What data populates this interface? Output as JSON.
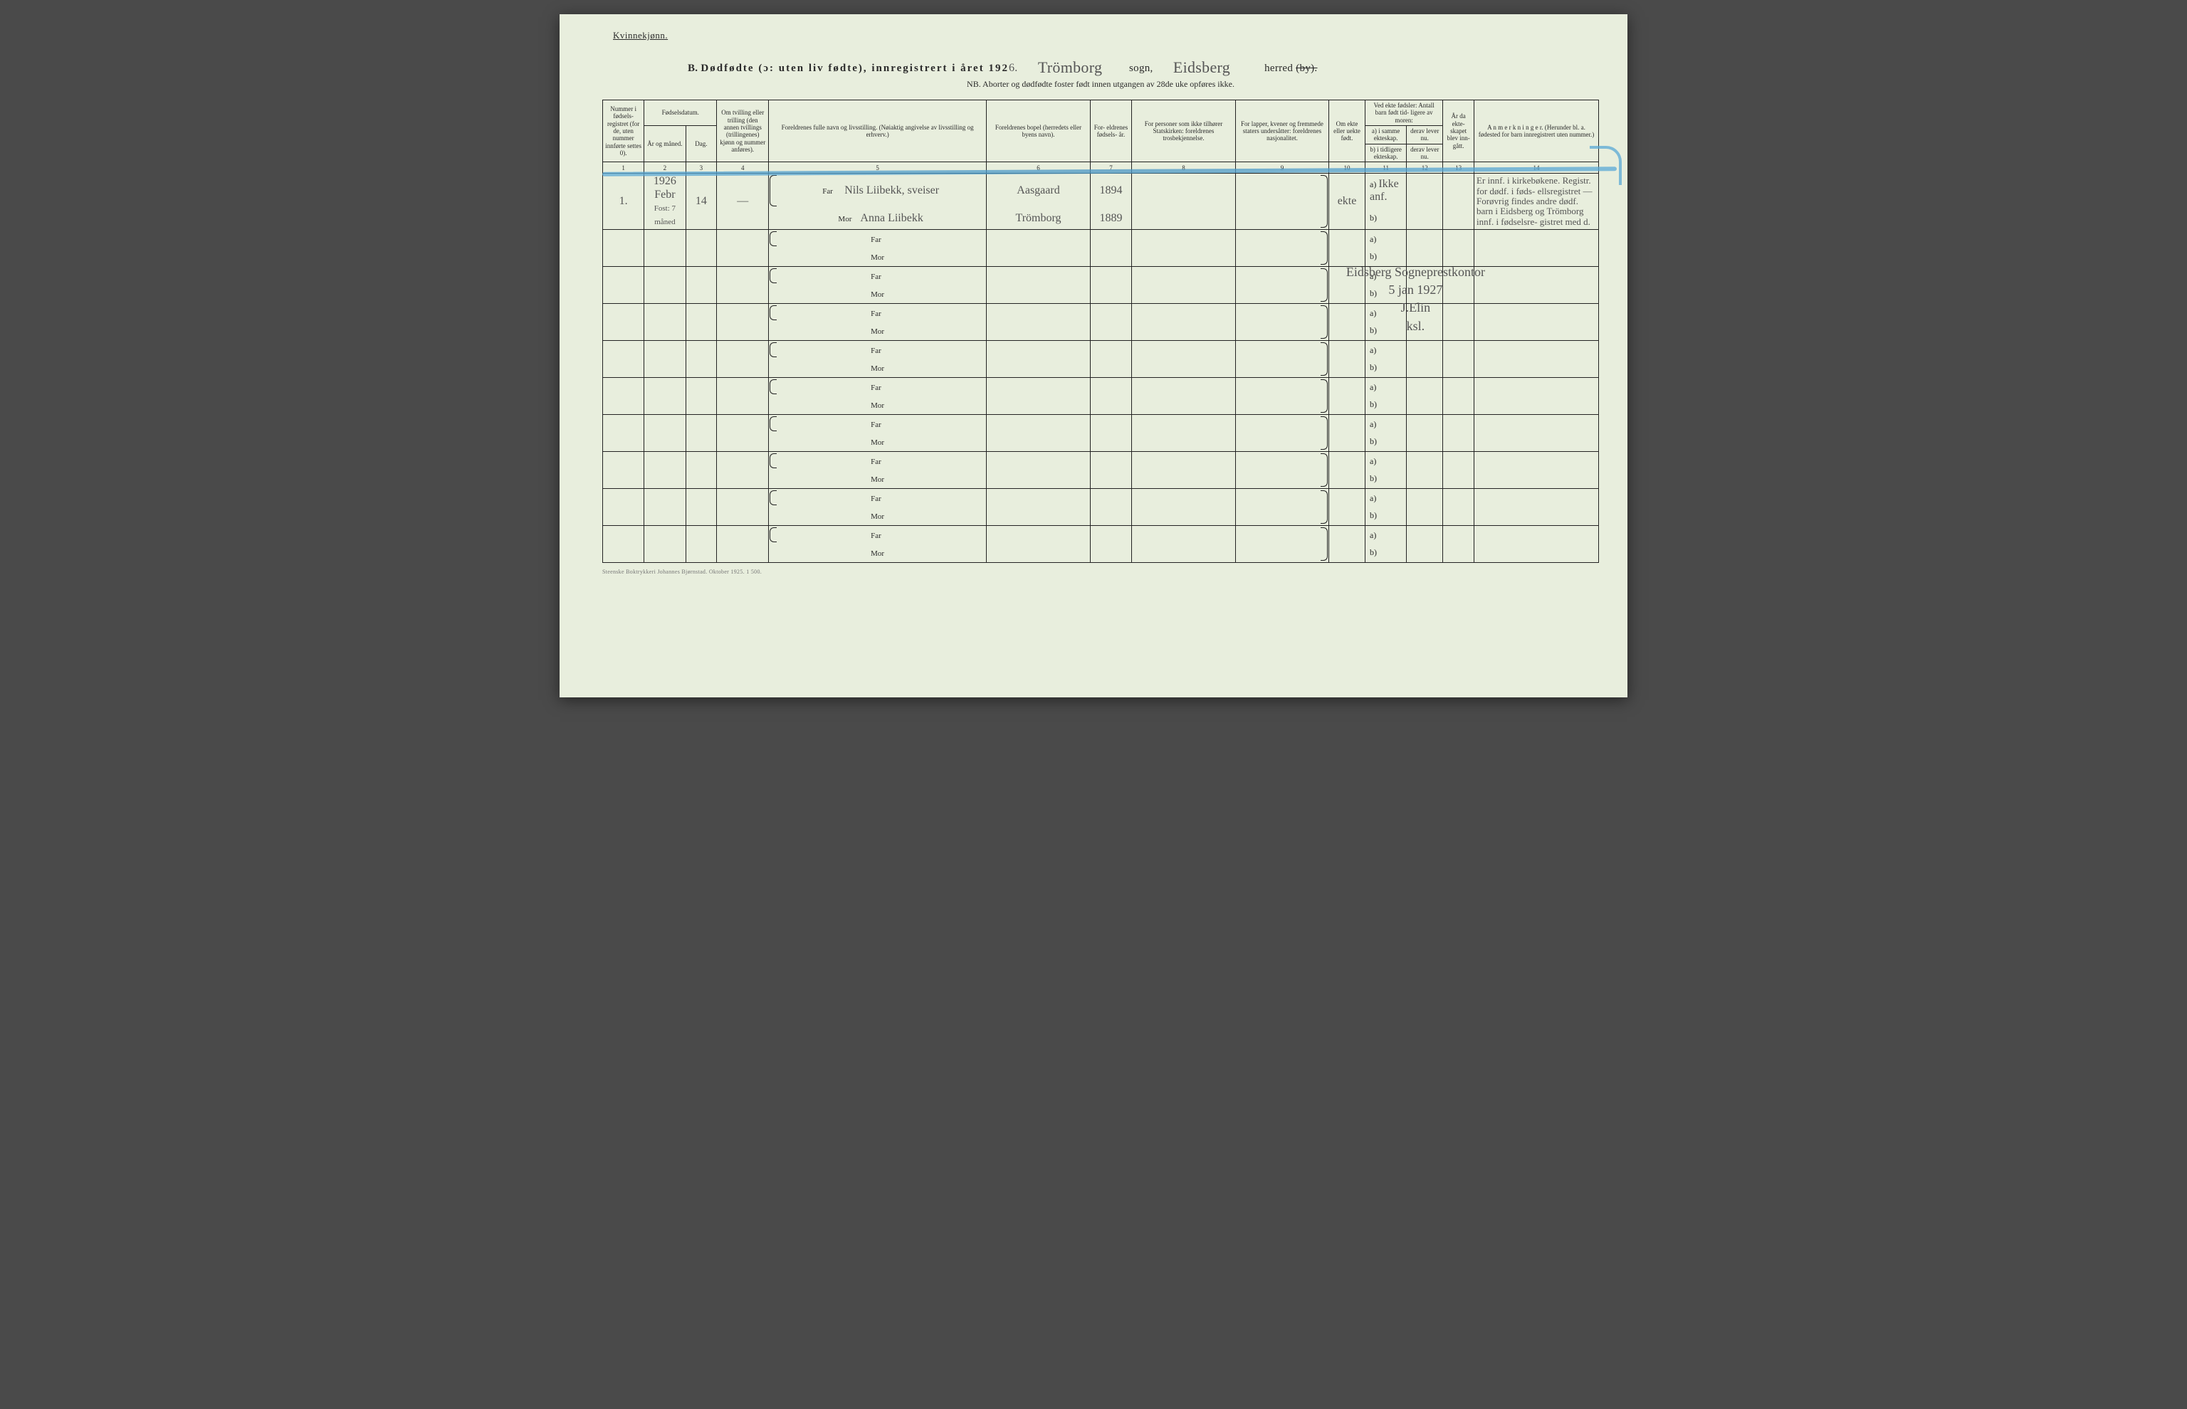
{
  "header": {
    "corner": "Kvinnekjønn.",
    "prefix": "B.",
    "title_main": "Dødfødte (ɔ: uten liv fødte), innregistrert i året 192",
    "year_digit": "6.",
    "sogn_label": "sogn,",
    "herred_label": "herred",
    "by_strike": "(by).",
    "sogn_value": "Trömborg",
    "herred_value": "Eidsberg",
    "nb_line": "NB.  Aborter og dødfødte foster født innen utgangen av 28de uke opføres ikke."
  },
  "columns": {
    "h1": "Nummer i fødsels- registret (for de, uten nummer innførte settes 0).",
    "h2_top": "Fødselsdatum.",
    "h2a": "År og måned.",
    "h2b": "Dag.",
    "h4": "Om tvilling eller trilling (den annen tvillings (trillingenes) kjønn og nummer anføres).",
    "h5": "Foreldrenes fulle navn og livsstilling. (Nøiaktig angivelse av livsstilling og erhverv.)",
    "h6": "Foreldrenes bopel (herredets eller byens navn).",
    "h7": "For- eldrenes fødsels- år.",
    "h8": "For personer som ikke tilhører Statskirken: foreldrenes trosbekjennelse.",
    "h9": "For lapper, kvener og fremmede staters undersåtter: foreldrenes nasjonalitet.",
    "h10": "Om ekte eller uekte født.",
    "h11_top": "Ved ekte fødsler: Antall barn født tid- ligere av moren:",
    "h11a": "a) i samme ekteskap.",
    "h11b": "b) i tidligere ekteskap.",
    "h12a": "derav lever nu.",
    "h12b": "derav lever nu.",
    "h13": "År da ekte- skapet blev inn- gått.",
    "h14": "A n m e r k n i n g e r. (Herunder bl. a. fødested for barn innregistrert uten nummer.)",
    "nums": [
      "1",
      "2",
      "3",
      "4",
      "5",
      "6",
      "7",
      "8",
      "9",
      "10",
      "11",
      "12",
      "13",
      "14"
    ]
  },
  "labels": {
    "far": "Far",
    "mor": "Mor",
    "a": "a)",
    "b": "b)"
  },
  "entry": {
    "num": "1.",
    "year": "1926",
    "month": "Febr",
    "day": "14",
    "note_under": "Fost: 7 måned",
    "twin": "—",
    "far_name": "Nils Liibekk, sveiser",
    "mor_name": "Anna Liibekk",
    "far_place": "Aasgaard",
    "mor_place": "Trömborg",
    "far_year": "1894",
    "mor_year": "1889",
    "ekte": "ekte",
    "a_val": "Ikke anf.",
    "remarks": "Er innf. i kirkebøkene. Registr. for dødf. i føds- ellsregistret — Forøvrig findes andre dødf. barn i Eidsberg og Trömborg innf. i fødselsre- gistret med d."
  },
  "stamp": {
    "line1": "Eidsberg Sogneprestkontor",
    "line2": "5 jan 1927",
    "line3": "J.Elin",
    "line4": "ksl."
  },
  "footer": "Steenske Boktrykkeri Johannes Bjørnstad.   Oktober 1925.    1 500."
}
